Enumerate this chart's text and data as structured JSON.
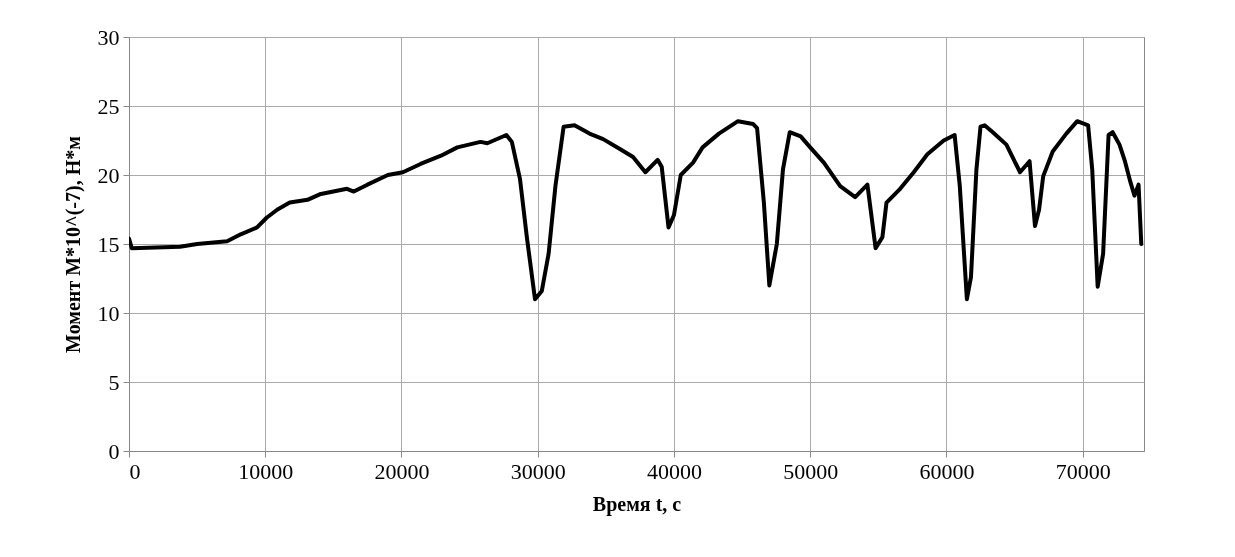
{
  "chart_data": {
    "type": "line",
    "xlabel": "Время t, с",
    "ylabel": "Момент M*10^(-7), Н*м",
    "xlim": [
      0,
      74500
    ],
    "ylim": [
      0,
      30
    ],
    "xticks": [
      0,
      10000,
      20000,
      30000,
      40000,
      50000,
      60000,
      70000
    ],
    "yticks": [
      0,
      5,
      10,
      15,
      20,
      25,
      30
    ],
    "grid": true,
    "marker": "none",
    "line_style": "solid",
    "x": [
      0,
      200,
      3750,
      5000,
      7200,
      8200,
      9400,
      10100,
      10900,
      11800,
      13100,
      14000,
      16000,
      16500,
      17500,
      19000,
      20100,
      21400,
      22900,
      24100,
      25800,
      26300,
      27700,
      28100,
      28700,
      29200,
      29800,
      30300,
      30800,
      31300,
      31900,
      32700,
      33800,
      34800,
      36000,
      37000,
      37900,
      38800,
      39100,
      39600,
      40000,
      40500,
      41400,
      42100,
      43300,
      44700,
      45800,
      46100,
      46600,
      47000,
      47550,
      48000,
      48500,
      49300,
      50000,
      51000,
      52200,
      53300,
      54200,
      54800,
      55300,
      55600,
      56600,
      57600,
      58600,
      59800,
      60600,
      60980,
      61500,
      61800,
      62200,
      62500,
      62800,
      63400,
      64400,
      65400,
      66100,
      66500,
      66800,
      67100,
      67800,
      68800,
      69600,
      70400,
      70700,
      71100,
      71500,
      71900,
      72200,
      72700,
      73100,
      73500,
      73800,
      74100,
      74300
    ],
    "series": [
      {
        "color": "#000000",
        "values": [
          15.4,
          14.7,
          14.8,
          15.0,
          15.2,
          15.7,
          16.2,
          16.9,
          17.5,
          18.0,
          18.2,
          18.6,
          19.0,
          18.8,
          19.3,
          20.0,
          20.2,
          20.8,
          21.4,
          22.0,
          22.4,
          22.3,
          22.9,
          22.4,
          19.7,
          15.5,
          11.0,
          11.6,
          14.3,
          19.2,
          23.5,
          23.6,
          23.0,
          22.6,
          21.9,
          21.3,
          20.2,
          21.1,
          20.6,
          16.2,
          17.1,
          20.0,
          20.9,
          22.0,
          23.0,
          23.9,
          23.7,
          23.4,
          18.0,
          12.0,
          15.0,
          20.4,
          23.1,
          22.8,
          22.0,
          20.9,
          19.2,
          18.4,
          19.3,
          14.7,
          15.5,
          18.0,
          19.0,
          20.2,
          21.5,
          22.5,
          22.9,
          19.2,
          11.0,
          12.6,
          20.4,
          23.5,
          23.6,
          23.1,
          22.2,
          20.2,
          21.0,
          16.3,
          17.5,
          19.9,
          21.7,
          23.0,
          23.9,
          23.6,
          20.4,
          11.9,
          14.3,
          22.9,
          23.1,
          22.2,
          21.0,
          19.5,
          18.5,
          19.3,
          15.0
        ]
      }
    ]
  }
}
